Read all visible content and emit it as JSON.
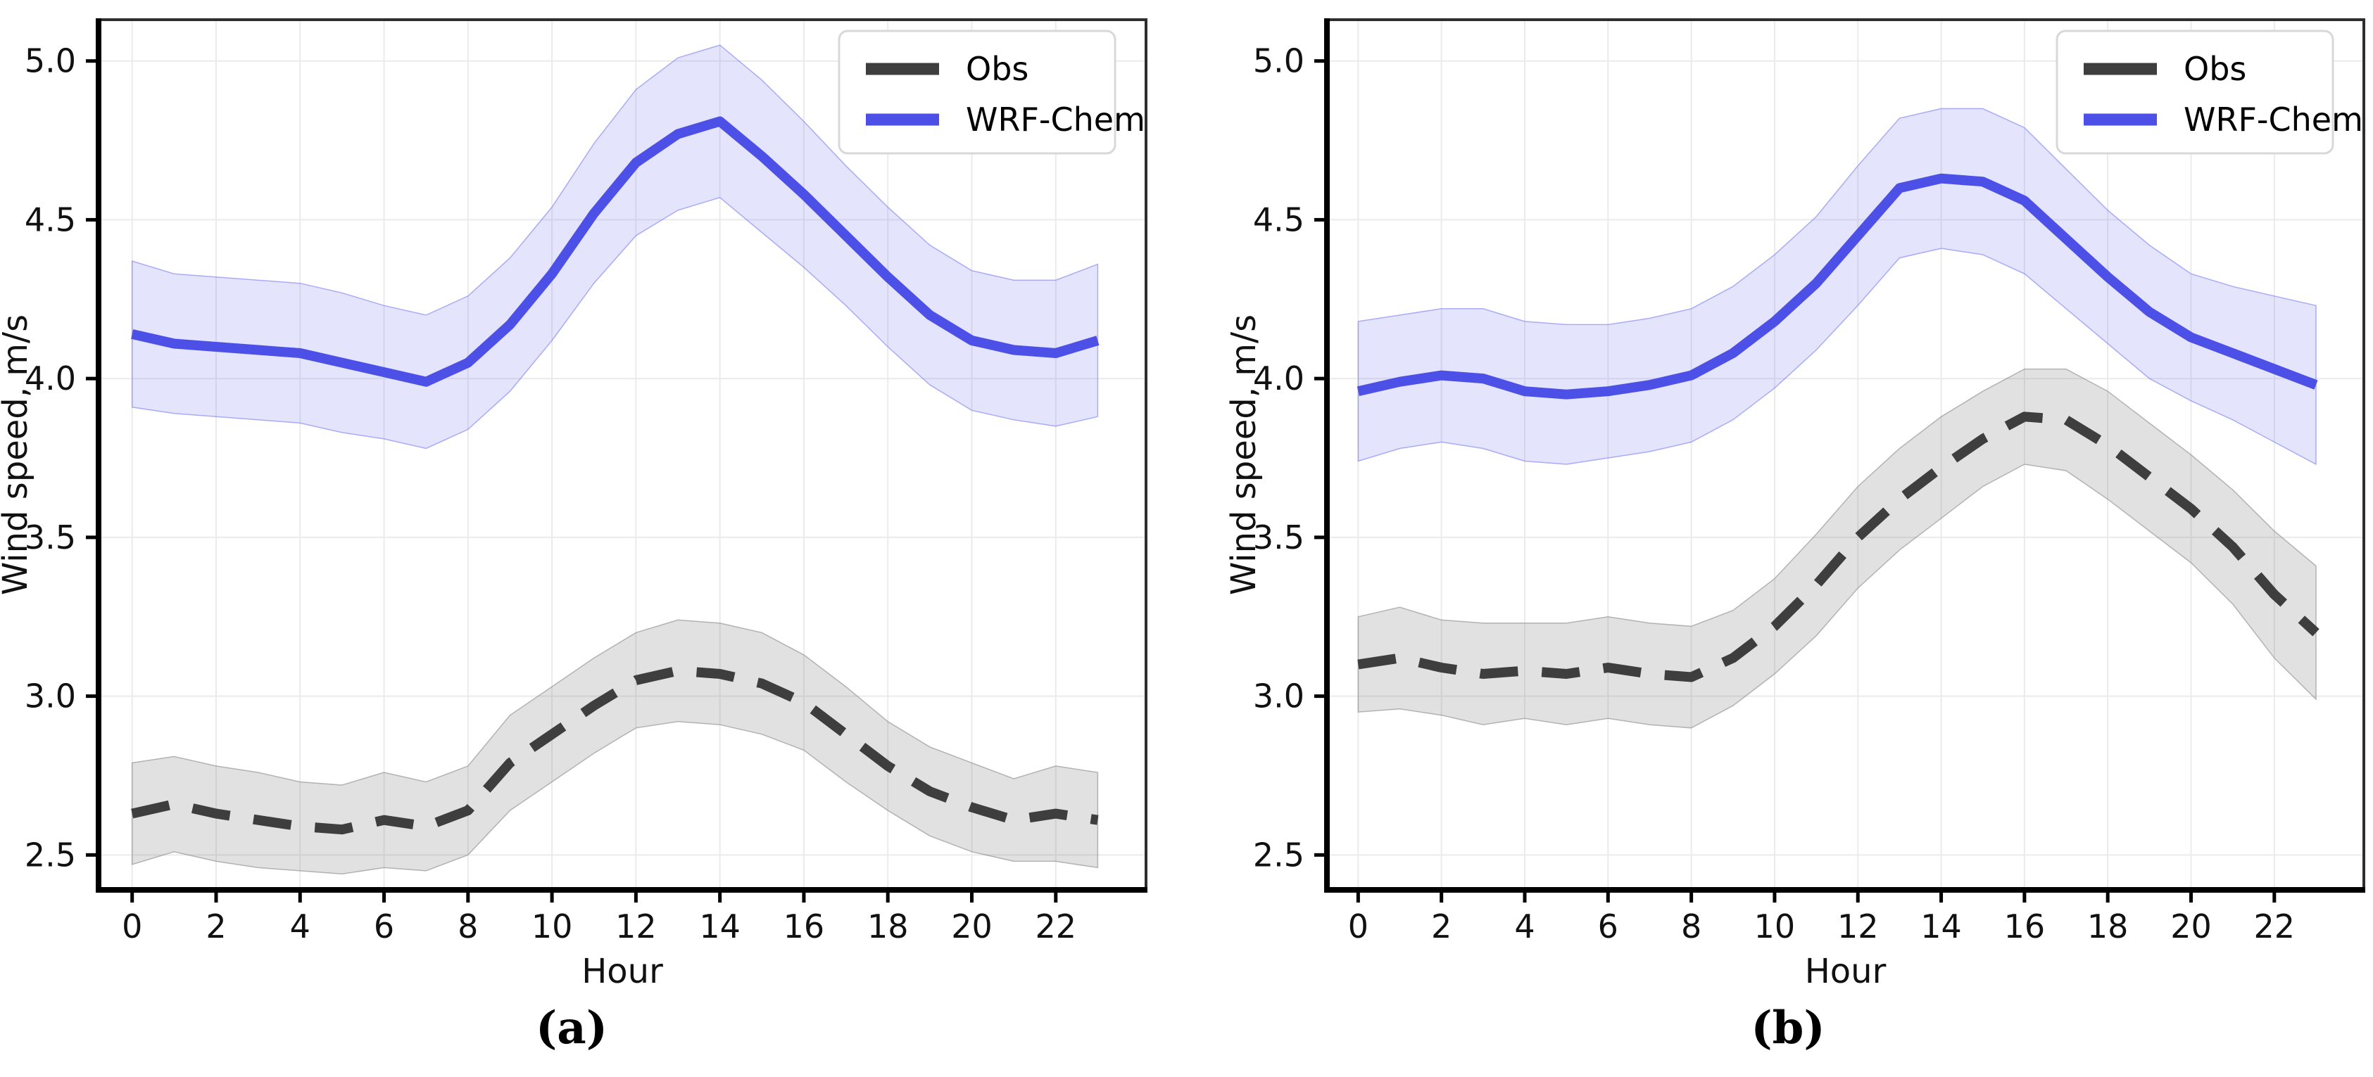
{
  "figure": {
    "captions": {
      "a": "(a)",
      "b": "(b)"
    }
  },
  "colors": {
    "wrf_line": "#4d50e6",
    "wrf_band_fill": "rgba(92,96,240,0.17)",
    "wrf_band_edge": "rgba(110,114,242,0.55)",
    "obs_line": "#3e3e3e",
    "obs_band_fill": "rgba(120,120,120,0.22)",
    "obs_band_edge": "rgba(130,130,130,0.55)",
    "grid": "#ebebeb",
    "spine": "#000000",
    "frame": "#2e2e2e",
    "tick_label": "#111111",
    "legend_bg": "#ffffff",
    "legend_border": "#d8d8d8",
    "legend_text": "#000000"
  },
  "chart_data": [
    {
      "type": "line",
      "panel": "a",
      "title": "",
      "xlabel": "Hour",
      "ylabel": "Wind speed, m/s",
      "x": [
        0,
        1,
        2,
        3,
        4,
        5,
        6,
        7,
        8,
        9,
        10,
        11,
        12,
        13,
        14,
        15,
        16,
        17,
        18,
        19,
        20,
        21,
        22,
        23
      ],
      "xticks": [
        0,
        2,
        4,
        6,
        8,
        10,
        12,
        14,
        16,
        18,
        20,
        22
      ],
      "yticks": [
        2.5,
        3.0,
        3.5,
        4.0,
        4.5,
        5.0
      ],
      "xlim": [
        -0.8,
        24.15
      ],
      "ylim": [
        2.39,
        5.13
      ],
      "grid": true,
      "legend": {
        "position": "upper right",
        "entries": [
          "Obs",
          "WRF-Chem"
        ]
      },
      "series": [
        {
          "name": "Obs",
          "style": "dashed",
          "color_key": "obs",
          "values": [
            2.63,
            2.66,
            2.63,
            2.61,
            2.59,
            2.58,
            2.61,
            2.59,
            2.64,
            2.79,
            2.88,
            2.97,
            3.05,
            3.08,
            3.07,
            3.04,
            2.98,
            2.88,
            2.78,
            2.7,
            2.65,
            2.61,
            2.63,
            2.61
          ],
          "band_delta": [
            0.16,
            0.15,
            0.15,
            0.15,
            0.14,
            0.14,
            0.15,
            0.14,
            0.14,
            0.15,
            0.15,
            0.15,
            0.15,
            0.16,
            0.16,
            0.16,
            0.15,
            0.15,
            0.14,
            0.14,
            0.14,
            0.13,
            0.15,
            0.15
          ]
        },
        {
          "name": "WRF-Chem",
          "style": "solid",
          "color_key": "wrf",
          "values": [
            4.14,
            4.11,
            4.1,
            4.09,
            4.08,
            4.05,
            4.02,
            3.99,
            4.05,
            4.17,
            4.33,
            4.52,
            4.68,
            4.77,
            4.81,
            4.7,
            4.58,
            4.45,
            4.32,
            4.2,
            4.12,
            4.09,
            4.08,
            4.12
          ],
          "band_delta": [
            0.23,
            0.22,
            0.22,
            0.22,
            0.22,
            0.22,
            0.21,
            0.21,
            0.21,
            0.21,
            0.21,
            0.22,
            0.23,
            0.24,
            0.24,
            0.24,
            0.23,
            0.22,
            0.22,
            0.22,
            0.22,
            0.22,
            0.23,
            0.24
          ]
        }
      ]
    },
    {
      "type": "line",
      "panel": "b",
      "title": "",
      "xlabel": "Hour",
      "ylabel": "Wind speed, m/s",
      "x": [
        0,
        1,
        2,
        3,
        4,
        5,
        6,
        7,
        8,
        9,
        10,
        11,
        12,
        13,
        14,
        15,
        16,
        17,
        18,
        19,
        20,
        21,
        22,
        23
      ],
      "xticks": [
        0,
        2,
        4,
        6,
        8,
        10,
        12,
        14,
        16,
        18,
        20,
        22
      ],
      "yticks": [
        2.5,
        3.0,
        3.5,
        4.0,
        4.5,
        5.0
      ],
      "xlim": [
        -0.75,
        24.15
      ],
      "ylim": [
        2.39,
        5.13
      ],
      "grid": true,
      "legend": {
        "position": "upper right",
        "entries": [
          "Obs",
          "WRF-Chem"
        ]
      },
      "series": [
        {
          "name": "Obs",
          "style": "dashed",
          "color_key": "obs",
          "values": [
            3.1,
            3.12,
            3.09,
            3.07,
            3.08,
            3.07,
            3.09,
            3.07,
            3.06,
            3.12,
            3.22,
            3.35,
            3.5,
            3.62,
            3.72,
            3.81,
            3.88,
            3.87,
            3.79,
            3.69,
            3.59,
            3.47,
            3.32,
            3.2
          ],
          "band_delta": [
            0.15,
            0.16,
            0.15,
            0.16,
            0.15,
            0.16,
            0.16,
            0.16,
            0.16,
            0.15,
            0.15,
            0.16,
            0.16,
            0.16,
            0.16,
            0.15,
            0.15,
            0.16,
            0.17,
            0.17,
            0.17,
            0.18,
            0.2,
            0.21
          ]
        },
        {
          "name": "WRF-Chem",
          "style": "solid",
          "color_key": "wrf",
          "values": [
            3.96,
            3.99,
            4.01,
            4.0,
            3.96,
            3.95,
            3.96,
            3.98,
            4.01,
            4.08,
            4.18,
            4.3,
            4.45,
            4.6,
            4.63,
            4.62,
            4.56,
            4.44,
            4.32,
            4.21,
            4.13,
            4.08,
            4.03,
            3.98
          ],
          "band_delta": [
            0.22,
            0.21,
            0.21,
            0.22,
            0.22,
            0.22,
            0.21,
            0.21,
            0.21,
            0.21,
            0.21,
            0.21,
            0.22,
            0.22,
            0.22,
            0.23,
            0.23,
            0.22,
            0.21,
            0.21,
            0.2,
            0.21,
            0.23,
            0.25
          ]
        }
      ]
    }
  ]
}
